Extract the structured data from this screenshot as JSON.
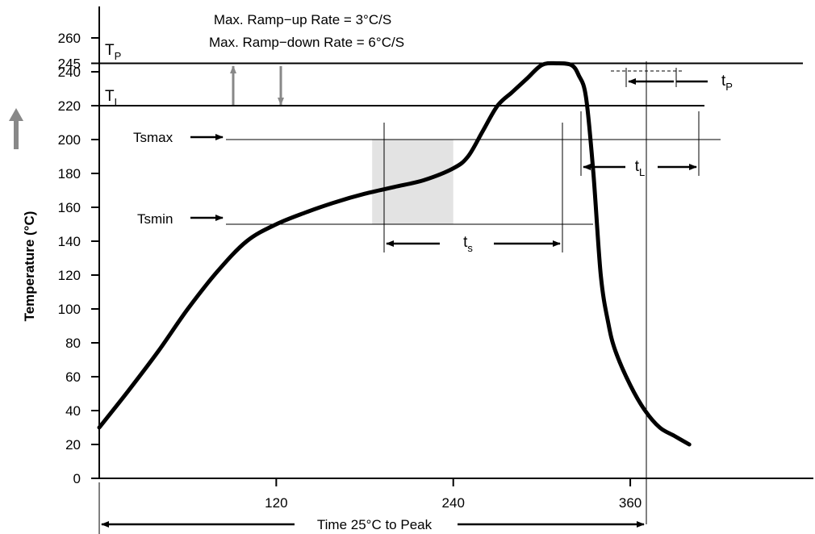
{
  "chart_data": {
    "type": "line",
    "ylabel": "Temperature (°C)",
    "xlabel": "Time 25°C to Peak",
    "y_ticks": [
      0,
      20,
      40,
      60,
      80,
      100,
      120,
      140,
      160,
      180,
      200,
      220,
      240,
      245,
      260
    ],
    "y_tick_labels": [
      "0",
      "20",
      "40",
      "60",
      "80",
      "100",
      "120",
      "140",
      "160",
      "180",
      "200",
      "220",
      "240",
      "245",
      "260"
    ],
    "x_ticks": [
      120,
      240,
      360
    ],
    "x_tick_labels": [
      "120",
      "240",
      "360"
    ],
    "ylim": [
      0,
      270
    ],
    "xlim": [
      0,
      400
    ],
    "series": [
      {
        "x": [
          0,
          20,
          40,
          60,
          80,
          100,
          120,
          140,
          160,
          180,
          200,
          220,
          240,
          250,
          260,
          270,
          280,
          290,
          300,
          310,
          320,
          325,
          330,
          335,
          340,
          345,
          350,
          360,
          370,
          380,
          390,
          400
        ],
        "y": [
          30,
          52,
          75,
          100,
          122,
          140,
          150,
          157,
          163,
          168,
          172,
          176,
          183,
          190,
          205,
          220,
          228,
          236,
          244,
          245,
          244,
          238,
          225,
          180,
          120,
          92,
          75,
          55,
          40,
          30,
          25,
          20
        ]
      }
    ],
    "reference_lines": {
      "TP": 245,
      "TL": 220,
      "Tsmax": 200,
      "Tsmin": 150
    },
    "soak_region": {
      "x_start": 185,
      "x_end": 240,
      "y_min": 150,
      "y_max": 200
    }
  },
  "annotations": {
    "ramp_up": "Max. Ramp−up Rate = 3°C/S",
    "ramp_down": "Max. Ramp−down Rate = 6°C/S",
    "tp_label": {
      "main": "T",
      "sub": "P"
    },
    "tl_label": {
      "main": "T",
      "sub": "L"
    },
    "tsmax": "Tsmax",
    "tsmin": "Tsmin",
    "ts_label": {
      "main": "t",
      "sub": "s"
    },
    "tL_label": {
      "main": "t",
      "sub": "L"
    },
    "tP_label": {
      "main": "t",
      "sub": "P"
    }
  }
}
